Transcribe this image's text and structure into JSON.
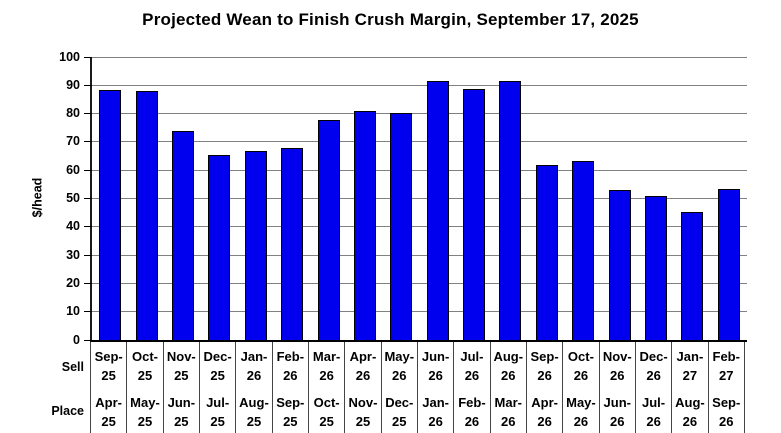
{
  "chart_data": {
    "type": "bar",
    "title": "Projected Wean to Finish Crush Margin, September 17, 2025",
    "ylabel": "$/head",
    "ylim": [
      0,
      100
    ],
    "yticks": [
      0,
      10,
      20,
      30,
      40,
      50,
      60,
      70,
      80,
      90,
      100
    ],
    "grid": true,
    "legend": false,
    "bar_color": "#0000EE",
    "bar_border_color": "#000000",
    "gridline_color": "#808080",
    "axis_color": "#000000",
    "row_headers": {
      "sell": "Sell",
      "place": "Place"
    },
    "columns": [
      {
        "sell": "Sep-25",
        "place": "Apr-25",
        "value": 88
      },
      {
        "sell": "Oct-25",
        "place": "May-25",
        "value": 87.5
      },
      {
        "sell": "Nov-25",
        "place": "Jun-25",
        "value": 73.5
      },
      {
        "sell": "Dec-25",
        "place": "Jul-25",
        "value": 65
      },
      {
        "sell": "Jan-26",
        "place": "Aug-25",
        "value": 66.5
      },
      {
        "sell": "Feb-26",
        "place": "Sep-25",
        "value": 67.5
      },
      {
        "sell": "Mar-26",
        "place": "Oct-25",
        "value": 77.5
      },
      {
        "sell": "Apr-26",
        "place": "Nov-25",
        "value": 80.5
      },
      {
        "sell": "May-26",
        "place": "Dec-25",
        "value": 80
      },
      {
        "sell": "Jun-26",
        "place": "Jan-26",
        "value": 91
      },
      {
        "sell": "Jul-26",
        "place": "Feb-26",
        "value": 88.5
      },
      {
        "sell": "Aug-26",
        "place": "Mar-26",
        "value": 91
      },
      {
        "sell": "Sep-26",
        "place": "Apr-26",
        "value": 61.5
      },
      {
        "sell": "Oct-26",
        "place": "May-26",
        "value": 63
      },
      {
        "sell": "Nov-26",
        "place": "Jun-26",
        "value": 52.5
      },
      {
        "sell": "Dec-26",
        "place": "Jul-26",
        "value": 50.5
      },
      {
        "sell": "Jan-27",
        "place": "Aug-26",
        "value": 45
      },
      {
        "sell": "Feb-27",
        "place": "Sep-26",
        "value": 53
      }
    ]
  }
}
